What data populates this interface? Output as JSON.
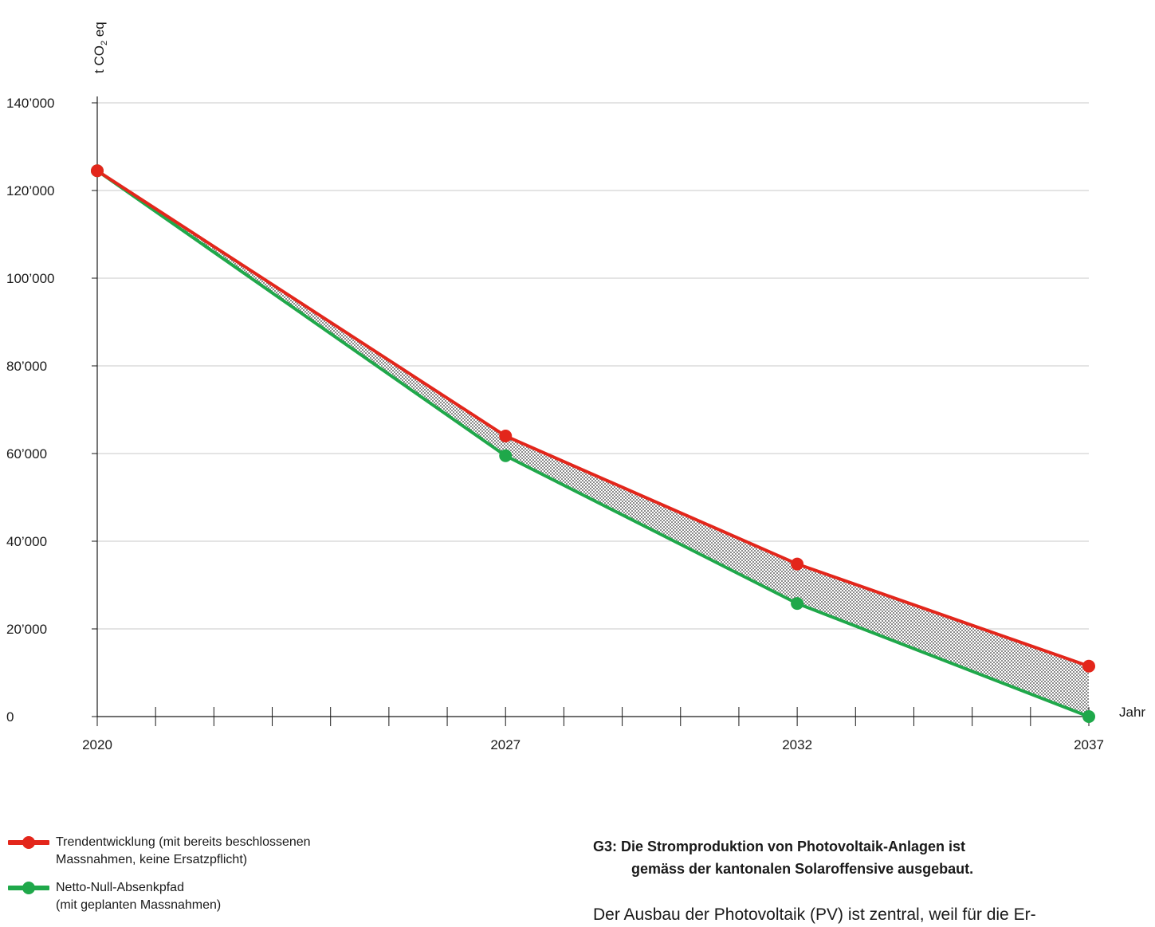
{
  "chart_data": {
    "type": "line",
    "y_axis_label_prefix": "t CO",
    "y_axis_label_sub": "2",
    "y_axis_label_suffix": " eq",
    "x_axis_label": "Jahr",
    "ylim": [
      0,
      140000
    ],
    "y_ticks": [
      0,
      20000,
      40000,
      60000,
      80000,
      100000,
      120000,
      140000
    ],
    "y_tick_labels": [
      "0",
      "20’000",
      "40’000",
      "60’000",
      "80’000",
      "100’000",
      "120’000",
      "140’000"
    ],
    "xlim": [
      2020,
      2037
    ],
    "x_tick_labels": [
      "2020",
      "2027",
      "2032",
      "2037"
    ],
    "x_minor_ticks": 17,
    "grid": true,
    "series": [
      {
        "name": "Trendentwicklung (mit bereits beschlossenen Massnahmen, keine Ersatzpflicht)",
        "color": "#e3261b",
        "x": [
          2020,
          2027,
          2032,
          2037
        ],
        "values": [
          124500,
          64000,
          34800,
          11500
        ]
      },
      {
        "name": "Netto-Null-Absenkpfad (mit geplanten Massnahmen)",
        "color": "#1fa84a",
        "x": [
          2020,
          2027,
          2032,
          2037
        ],
        "values": [
          124500,
          59500,
          25800,
          0
        ]
      }
    ],
    "hatch_between_series": true
  },
  "legend": {
    "items": [
      {
        "line1": "Trendentwicklung (mit bereits beschlossenen",
        "line2": "Massnahmen, keine Ersatzpflicht)",
        "color": "#e3261b"
      },
      {
        "line1": "Netto-Null-Absenkpfad",
        "line2": "(mit geplanten Massnahmen)",
        "color": "#1fa84a"
      }
    ]
  },
  "caption": {
    "line1": "G3: Die Stromproduktion von Photovoltaik-Anlagen ist",
    "line2": "gemäss der kantonalen Solaroffensive ausgebaut."
  },
  "body_text": "Der Ausbau der Photovoltaik (PV) ist zentral, weil für die Er-"
}
